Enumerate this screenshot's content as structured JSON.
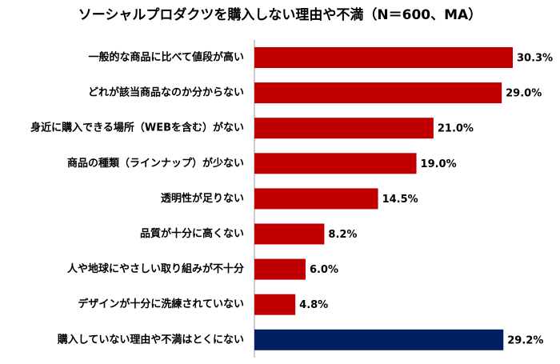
{
  "chart_data": {
    "type": "bar",
    "orientation": "horizontal",
    "title": "ソーシャルプロダクツを購入しない理由や不満（N＝600、MA）",
    "categories": [
      "一般的な商品に比べて値段が高い",
      "どれが該当商品なのか分からない",
      "身近に購入できる場所（WEBを含む）がない",
      "商品の種類（ラインナップ）が少ない",
      "透明性が足りない",
      "品質が十分に高くない",
      "人や地球にやさしい取り組みが不十分",
      "デザインが十分に洗練されていない",
      "購入していない理由や不満はとくにない"
    ],
    "values": [
      30.3,
      29.0,
      21.0,
      19.0,
      14.5,
      8.2,
      6.0,
      4.8,
      29.2
    ],
    "value_labels": [
      "30.3%",
      "29.0%",
      "21.0%",
      "19.0%",
      "14.5%",
      "8.2%",
      "6.0%",
      "4.8%",
      "29.2%"
    ],
    "colors": [
      "#c00000",
      "#c00000",
      "#c00000",
      "#c00000",
      "#c00000",
      "#c00000",
      "#c00000",
      "#c00000",
      "#002060"
    ]
  }
}
